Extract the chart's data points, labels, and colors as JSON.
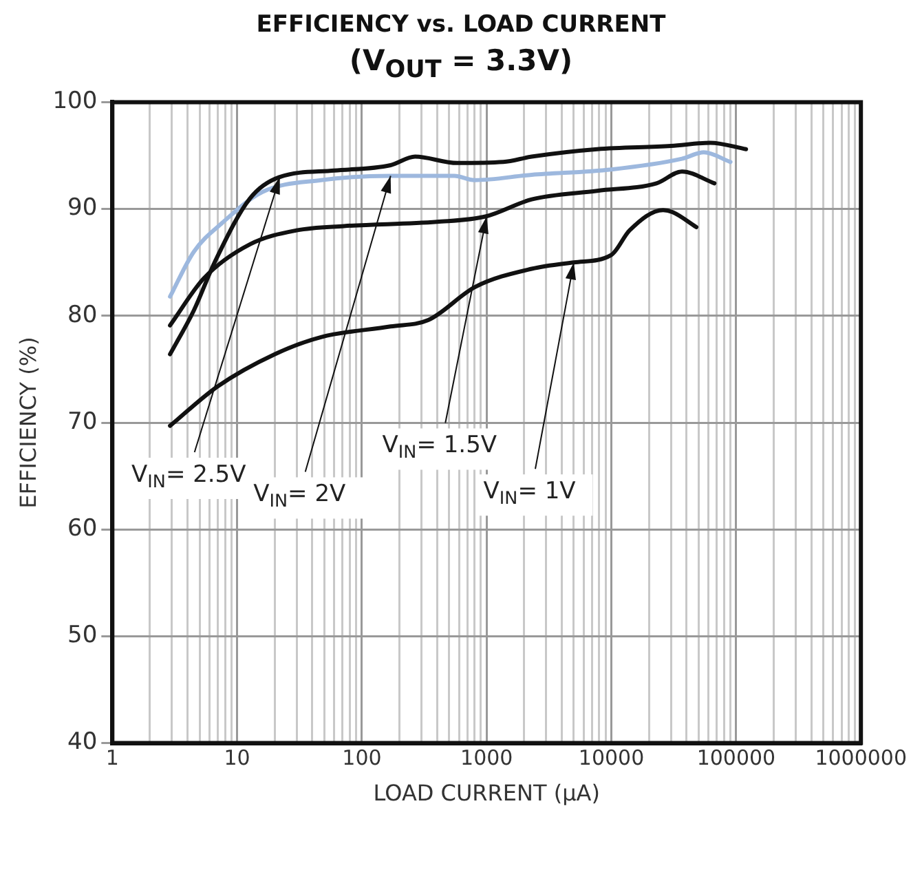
{
  "chart_data": {
    "type": "line",
    "title": "EFFICIENCY vs. LOAD CURRENT",
    "subtitle": "(V$_{OUT}$ = 3.3V)",
    "xlabel": "LOAD CURRENT (μA)",
    "ylabel": "EFFICIENCY (%)",
    "log": "x",
    "xlim": [
      1,
      1000000
    ],
    "ylim": [
      40,
      100
    ],
    "xticks": [
      1,
      {
        "value": 2,
        "label": null
      },
      {
        "value": 3,
        "label": null
      },
      {
        "value": 4,
        "label": null
      },
      {
        "value": 5,
        "label": null
      },
      {
        "value": 6,
        "label": null
      },
      {
        "value": 7,
        "label": null
      },
      {
        "value": 8,
        "label": null
      },
      {
        "value": 9,
        "label": null
      },
      10,
      {
        "value": 20,
        "label": null
      },
      {
        "value": 30,
        "label": null
      },
      {
        "value": 40,
        "label": null
      },
      {
        "value": 50,
        "label": null
      },
      {
        "value": 60,
        "label": null
      },
      {
        "value": 70,
        "label": null
      },
      {
        "value": 80,
        "label": null
      },
      {
        "value": 90,
        "label": null
      },
      100,
      {
        "value": 200,
        "label": null
      },
      {
        "value": 300,
        "label": null
      },
      {
        "value": 400,
        "label": null
      },
      {
        "value": 500,
        "label": null
      },
      {
        "value": 600,
        "label": null
      },
      {
        "value": 700,
        "label": null
      },
      {
        "value": 800,
        "label": null
      },
      {
        "value": 900,
        "label": null
      },
      1000,
      {
        "value": 2000,
        "label": null
      },
      {
        "value": 3000,
        "label": null
      },
      {
        "value": 4000,
        "label": null
      },
      {
        "value": 5000,
        "label": null
      },
      {
        "value": 6000,
        "label": null
      },
      {
        "value": 7000,
        "label": null
      },
      {
        "value": 8000,
        "label": null
      },
      {
        "value": 9000,
        "label": null
      },
      10000,
      {
        "value": 20000,
        "label": null
      },
      {
        "value": 30000,
        "label": null
      },
      {
        "value": 40000,
        "label": null
      },
      {
        "value": 50000,
        "label": null
      },
      {
        "value": 60000,
        "label": null
      },
      {
        "value": 70000,
        "label": null
      },
      {
        "value": 80000,
        "label": null
      },
      {
        "value": 90000,
        "label": null
      },
      100000,
      {
        "value": 200000,
        "label": null
      },
      {
        "value": 300000,
        "label": null
      },
      {
        "value": 400000,
        "label": null
      },
      {
        "value": 500000,
        "label": null
      },
      {
        "value": 600000,
        "label": null
      },
      {
        "value": 700000,
        "label": null
      },
      {
        "value": 800000,
        "label": null
      },
      {
        "value": 900000,
        "label": null
      },
      1000000
    ],
    "yticks": [
      40,
      50,
      60,
      70,
      80,
      90,
      100
    ],
    "grid": true,
    "legend": false,
    "marker": "none",
    "line_style": "solid",
    "series": [
      {
        "color": "#111111",
        "x": [
          2.9,
          4.5,
          6.6,
          12.7,
          22,
          60,
          170,
          267,
          580,
          1360,
          2300,
          7700,
          30000,
          62000,
          120000
        ],
        "values": [
          76.4,
          80.5,
          85,
          91,
          93,
          93.6,
          94.1,
          94.9,
          94.3,
          94.4,
          94.9,
          95.6,
          95.9,
          96.2,
          95.6
        ]
      },
      {
        "color": "#9db8de",
        "x": [
          2.9,
          4.5,
          7.6,
          16,
          47,
          170,
          550,
          800,
          2300,
          10000,
          36800,
          55000,
          90000
        ],
        "values": [
          81.8,
          86,
          88.7,
          91.6,
          92.7,
          93.1,
          93.1,
          92.7,
          93.2,
          93.7,
          94.7,
          95.3,
          94.4
        ]
      },
      {
        "color": "#111111",
        "x": [
          2.9,
          5.4,
          12.7,
          30,
          72,
          400,
          980,
          2300,
          7700,
          23000,
          36800,
          67000
        ],
        "values": [
          79.1,
          83.5,
          86.7,
          88,
          88.4,
          88.8,
          89.3,
          90.9,
          91.7,
          92.4,
          93.5,
          92.4
        ]
      },
      {
        "color": "#111111",
        "x": [
          2.9,
          7,
          20,
          47,
          170,
          340,
          810,
          2300,
          5000,
          10000,
          14000,
          26000,
          31000,
          48000
        ],
        "values": [
          69.7,
          73.4,
          76.4,
          78,
          79,
          79.6,
          82.7,
          84.4,
          85,
          85.7,
          88,
          89.9,
          89.7,
          88.3
        ]
      }
    ],
    "annotations": [
      {
        "text": "V$_{IN}$= 2.5V",
        "x": 22,
        "y": 93
      },
      {
        "text": "V$_{IN}$= 2V",
        "x": 170,
        "y": 93.1
      },
      {
        "text": "V$_{IN}$= 1.5V",
        "x": 1000,
        "y": 89.3
      },
      {
        "text": "V$_{IN}$= 1V",
        "x": 5000,
        "y": 85
      }
    ]
  }
}
